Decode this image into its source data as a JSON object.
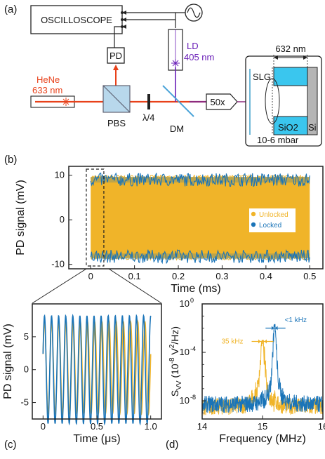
{
  "panels": {
    "a": "(a)",
    "b": "(b)",
    "c": "(c)",
    "d": "(d)"
  },
  "setup": {
    "oscilloscope": "OSCILLOSCOPE",
    "pd": "PD",
    "ld": "LD",
    "ld_wavelength": "405 nm",
    "hene": "HeNe",
    "hene_wavelength": "633 nm",
    "pbs": "PBS",
    "qwp": "λ/4",
    "dm": "DM",
    "objective": "50x",
    "dimension": "632 nm",
    "slg": "SLG",
    "sio2": "SiO2",
    "si": "Si",
    "pressure": "10-6 mbar",
    "colors": {
      "hene_beam": "#e8411a",
      "ld_beam": "#6a1fb8",
      "sample": "#3ac6ee"
    }
  },
  "chart_data": [
    {
      "id": "b",
      "type": "line",
      "xlabel": "Time (ms)",
      "ylabel": "PD signal (mV)",
      "xlim": [
        -0.05,
        0.53
      ],
      "ylim": [
        -11,
        12
      ],
      "xticks": [
        "0",
        "0.1",
        "0.2",
        "0.3",
        "0.4",
        "0.5"
      ],
      "xtick_values": [
        0,
        0.1,
        0.2,
        0.3,
        0.4,
        0.5
      ],
      "yticks": [
        "-10",
        "0",
        "10"
      ],
      "ytick_values": [
        -10,
        0,
        10
      ],
      "legend_position": "right",
      "series": [
        {
          "name": "Unlocked",
          "color": "#f0b429",
          "x_range": [
            0,
            0.5
          ],
          "upper_envelope": 9.6,
          "lower_envelope": -8.6,
          "envelope_jitter": 0.4
        },
        {
          "name": "Locked",
          "color": "#1a74b8",
          "x_range": [
            0,
            0.5
          ],
          "upper_envelope": 9.0,
          "lower_envelope": -8.2,
          "envelope_jitter": 1.5
        }
      ],
      "zoom_region_x": [
        -0.01,
        0.03
      ]
    },
    {
      "id": "c",
      "type": "line",
      "xlabel": "Time (μs)",
      "ylabel": "PD signal (mV)",
      "xlim": [
        -0.1,
        1.1
      ],
      "ylim": [
        -7.5,
        10
      ],
      "xticks": [
        "0",
        "0.5",
        "1.0"
      ],
      "xtick_values": [
        0,
        0.5,
        1.0
      ],
      "yticks": [
        "-5",
        "0",
        "5"
      ],
      "ytick_values": [
        -5,
        0,
        5
      ],
      "series": [
        {
          "name": "Unlocked",
          "color": "#f0b429",
          "frequency_mhz": 15.0,
          "amplitude": 7.0,
          "offset": 0.5
        },
        {
          "name": "Locked",
          "color": "#1a74b8",
          "frequency_mhz": 15.2,
          "amplitude": 8.2,
          "offset": 0.5
        }
      ]
    },
    {
      "id": "d",
      "type": "line",
      "xlabel": "Frequency (MHz)",
      "ylabel": "SVV (10-8 V2/Hz)",
      "ylabel_parts": [
        "S",
        "VV",
        " (10",
        "-8",
        " V",
        "2",
        "/Hz)"
      ],
      "xlim": [
        14,
        16
      ],
      "ylim_log10": [
        -9.5,
        0
      ],
      "yscale": "log",
      "xticks": [
        "14",
        "15",
        "16"
      ],
      "xtick_values": [
        14,
        15,
        16
      ],
      "yticks": [
        "10",
        "10",
        "10"
      ],
      "ytick_exponents": [
        "0",
        "-4",
        "-8"
      ],
      "ytick_values_log10": [
        0,
        -4,
        -8
      ],
      "annotations": {
        "linewidth_unlocked": "35 kHz",
        "linewidth_locked": "<1 kHz"
      },
      "series": [
        {
          "name": "Unlocked",
          "color": "#f0b429",
          "peak_mhz": 15.0,
          "peak_log10": -3,
          "floor_log10": -8.5
        },
        {
          "name": "Locked",
          "color": "#1a74b8",
          "peak_mhz": 15.2,
          "peak_log10": -1.7,
          "floor_log10": -8.3
        }
      ]
    }
  ]
}
